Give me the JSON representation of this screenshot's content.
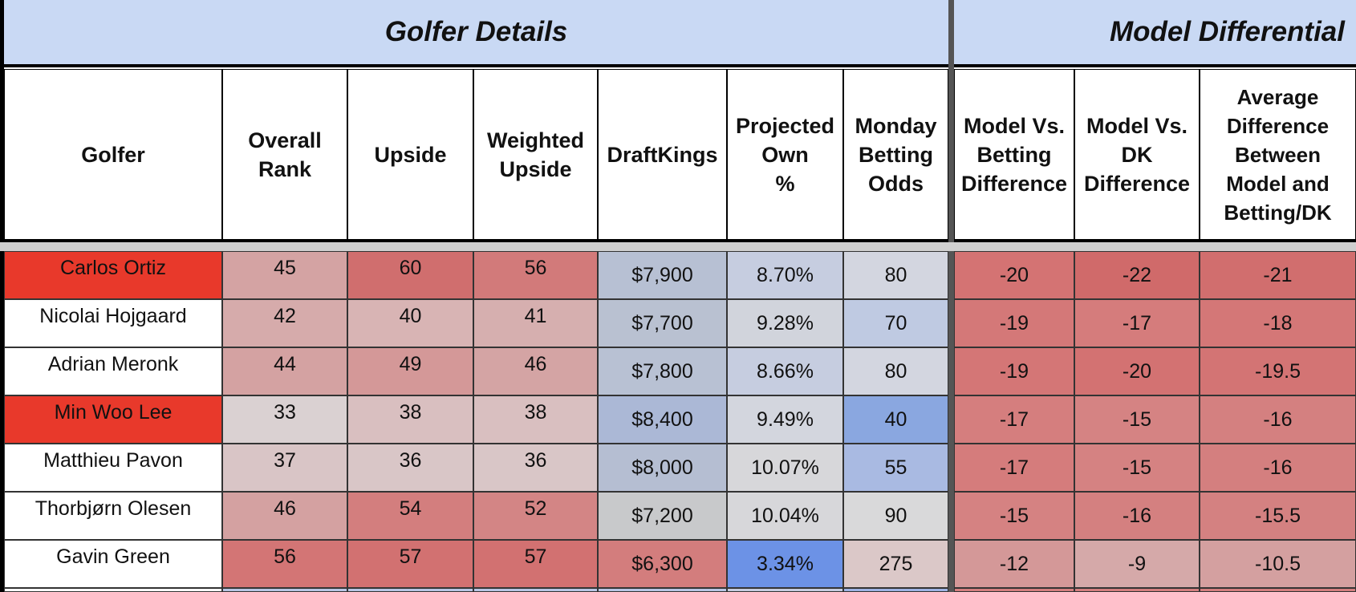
{
  "sections": [
    {
      "title": "Golfer Details"
    },
    {
      "title": "Model Differential"
    }
  ],
  "headers": [
    "Golfer",
    "Overall\nRank",
    "Upside",
    "Weighted\nUpside",
    "DraftKings",
    "Projected\nOwn\n%",
    "Monday\nBetting\nOdds",
    "Model Vs.\nBetting\nDifference",
    "Model Vs.\nDK\nDifference",
    "Average\nDifference\nBetween\nModel and\nBetting/DK"
  ],
  "rows": [
    {
      "cells": [
        "Carlos Ortiz",
        "45",
        "60",
        "56",
        "$7,900",
        "8.70%",
        "80",
        "-20",
        "-22",
        "-21"
      ],
      "colors": [
        "#e8392b",
        "#d4a3a3",
        "#d06e6e",
        "#d27a7a",
        "#b7c0d3",
        "#c6cde0",
        "#d3d6e0",
        "#d47373",
        "#d06a6a",
        "#d16e6e"
      ]
    },
    {
      "cells": [
        "Nicolai Hojgaard",
        "42",
        "40",
        "41",
        "$7,700",
        "9.28%",
        "70",
        "-19",
        "-17",
        "-18"
      ],
      "colors": [
        "#ffffff",
        "#d6abab",
        "#d8b4b4",
        "#d6afaf",
        "#b9c1d1",
        "#d1d4dc",
        "#bfcae2",
        "#d47878",
        "#d57c7c",
        "#d47777"
      ]
    },
    {
      "cells": [
        "Adrian Meronk",
        "44",
        "49",
        "46",
        "$7,800",
        "8.66%",
        "80",
        "-19",
        "-20",
        "-19.5"
      ],
      "colors": [
        "#ffffff",
        "#d4a2a2",
        "#d49898",
        "#d4a4a4",
        "#b8c1d3",
        "#c6cde0",
        "#d3d6e0",
        "#d47676",
        "#d37272",
        "#d37474"
      ]
    },
    {
      "cells": [
        "Min Woo Lee",
        "33",
        "38",
        "38",
        "$8,400",
        "9.49%",
        "40",
        "-17",
        "-15",
        "-16"
      ],
      "colors": [
        "#e8392b",
        "#dad1d2",
        "#d9bfc0",
        "#d9bfc0",
        "#abb8d6",
        "#d3d6de",
        "#8aa7e0",
        "#d57e7e",
        "#d58383",
        "#d48080"
      ]
    },
    {
      "cells": [
        "Matthieu Pavon",
        "37",
        "36",
        "36",
        "$8,000",
        "10.07%",
        "55",
        "-17",
        "-15",
        "-16"
      ],
      "colors": [
        "#ffffff",
        "#d9c5c6",
        "#d9c6c7",
        "#d9c6c7",
        "#b5bed2",
        "#d7d7da",
        "#a9bae2",
        "#d57c7c",
        "#d58282",
        "#d47f7f"
      ]
    },
    {
      "cells": [
        "Thorbjørn Olesen",
        "46",
        "54",
        "52",
        "$7,200",
        "10.04%",
        "90",
        "-15",
        "-16",
        "-15.5"
      ],
      "colors": [
        "#ffffff",
        "#d4a1a1",
        "#d37e7e",
        "#d38585",
        "#c8c9cb",
        "#d7d7da",
        "#d9d9da",
        "#d58282",
        "#d48080",
        "#d48181"
      ]
    },
    {
      "cells": [
        "Gavin Green",
        "56",
        "57",
        "57",
        "$6,300",
        "3.34%",
        "275",
        "-12",
        "-9",
        "-10.5"
      ],
      "colors": [
        "#ffffff",
        "#d37575",
        "#d27171",
        "#d27171",
        "#d37d7d",
        "#6c92e6",
        "#dbc8c8",
        "#d49898",
        "#d5a9a9",
        "#d4a0a0"
      ]
    }
  ]
}
